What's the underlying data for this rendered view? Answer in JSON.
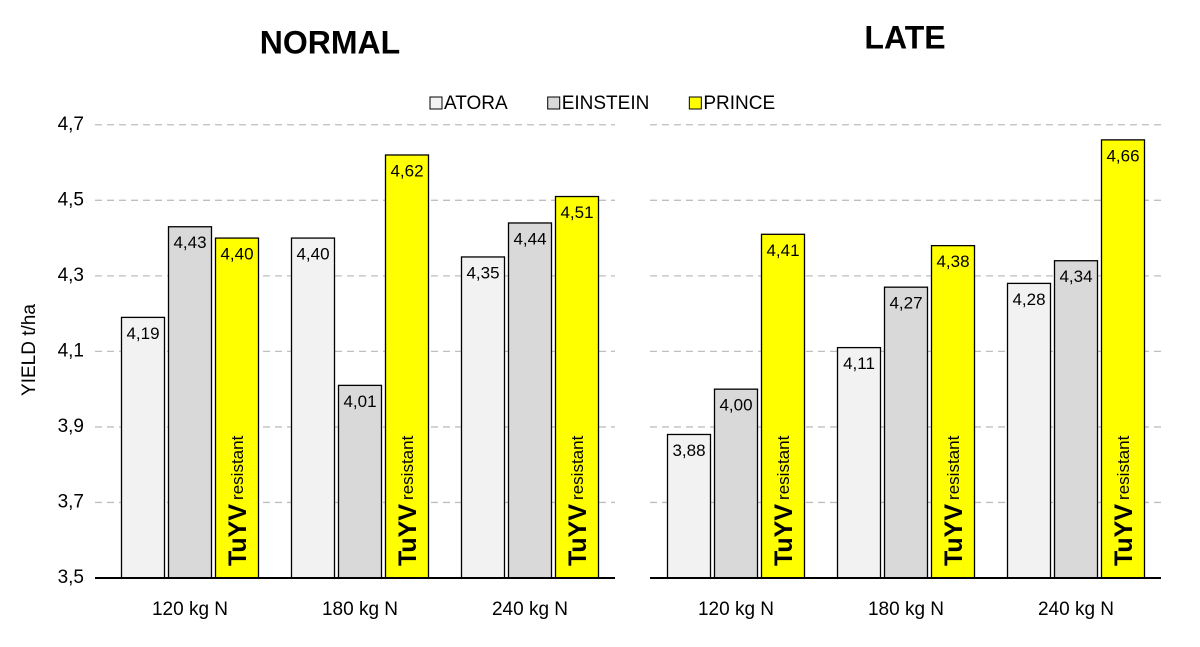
{
  "chart_data": [
    {
      "type": "bar",
      "title": "NORMAL",
      "ylabel": "YIELD t/ha",
      "categories": [
        "120 kg N",
        "180 kg N",
        "240 kg N"
      ],
      "series": [
        {
          "name": "ATORA",
          "color": "#f2f2f2",
          "values": [
            4.19,
            4.4,
            4.35
          ],
          "value_labels": [
            "4,19",
            "4,40",
            "4,35"
          ]
        },
        {
          "name": "EINSTEIN",
          "color": "#d9d9d9",
          "values": [
            4.43,
            4.01,
            4.44
          ],
          "value_labels": [
            "4,43",
            "4,01",
            "4,44"
          ]
        },
        {
          "name": "PRINCE",
          "color": "#ffff00",
          "values": [
            4.4,
            4.62,
            4.51
          ],
          "value_labels": [
            "4,40",
            "4,62",
            "4,51"
          ]
        }
      ],
      "ylim": [
        3.5,
        4.8
      ],
      "yticks": [
        {
          "value": 3.5,
          "label": "3,5"
        },
        {
          "value": 3.7,
          "label": "3,7"
        },
        {
          "value": 3.9,
          "label": "3,9"
        },
        {
          "value": 4.1,
          "label": "4,1"
        },
        {
          "value": 4.3,
          "label": "4,3"
        },
        {
          "value": 4.5,
          "label": "4,5"
        },
        {
          "value": 4.7,
          "label": "4,7"
        }
      ],
      "grid": true
    },
    {
      "type": "bar",
      "title": "LATE",
      "categories": [
        "120 kg N",
        "180 kg N",
        "240 kg N"
      ],
      "series": [
        {
          "color": "#f2f2f2",
          "values": [
            3.88,
            4.11,
            4.28
          ],
          "value_labels": [
            "3,88",
            "4,11",
            "4,28"
          ]
        },
        {
          "color": "#d9d9d9",
          "values": [
            4.0,
            4.27,
            4.34
          ],
          "value_labels": [
            "4,00",
            "4,27",
            "4,34"
          ]
        },
        {
          "color": "#ffff00",
          "values": [
            4.41,
            4.38,
            4.66
          ],
          "value_labels": [
            "4,41",
            "4,38",
            "4,66"
          ]
        }
      ],
      "ylim": [
        3.5,
        4.8
      ],
      "yticks": [
        3.5,
        3.7,
        3.9,
        4.1,
        4.3,
        4.5,
        4.7
      ],
      "grid": true
    }
  ],
  "bar_annotation": {
    "main": "TuYV",
    "sub": "resistant"
  }
}
